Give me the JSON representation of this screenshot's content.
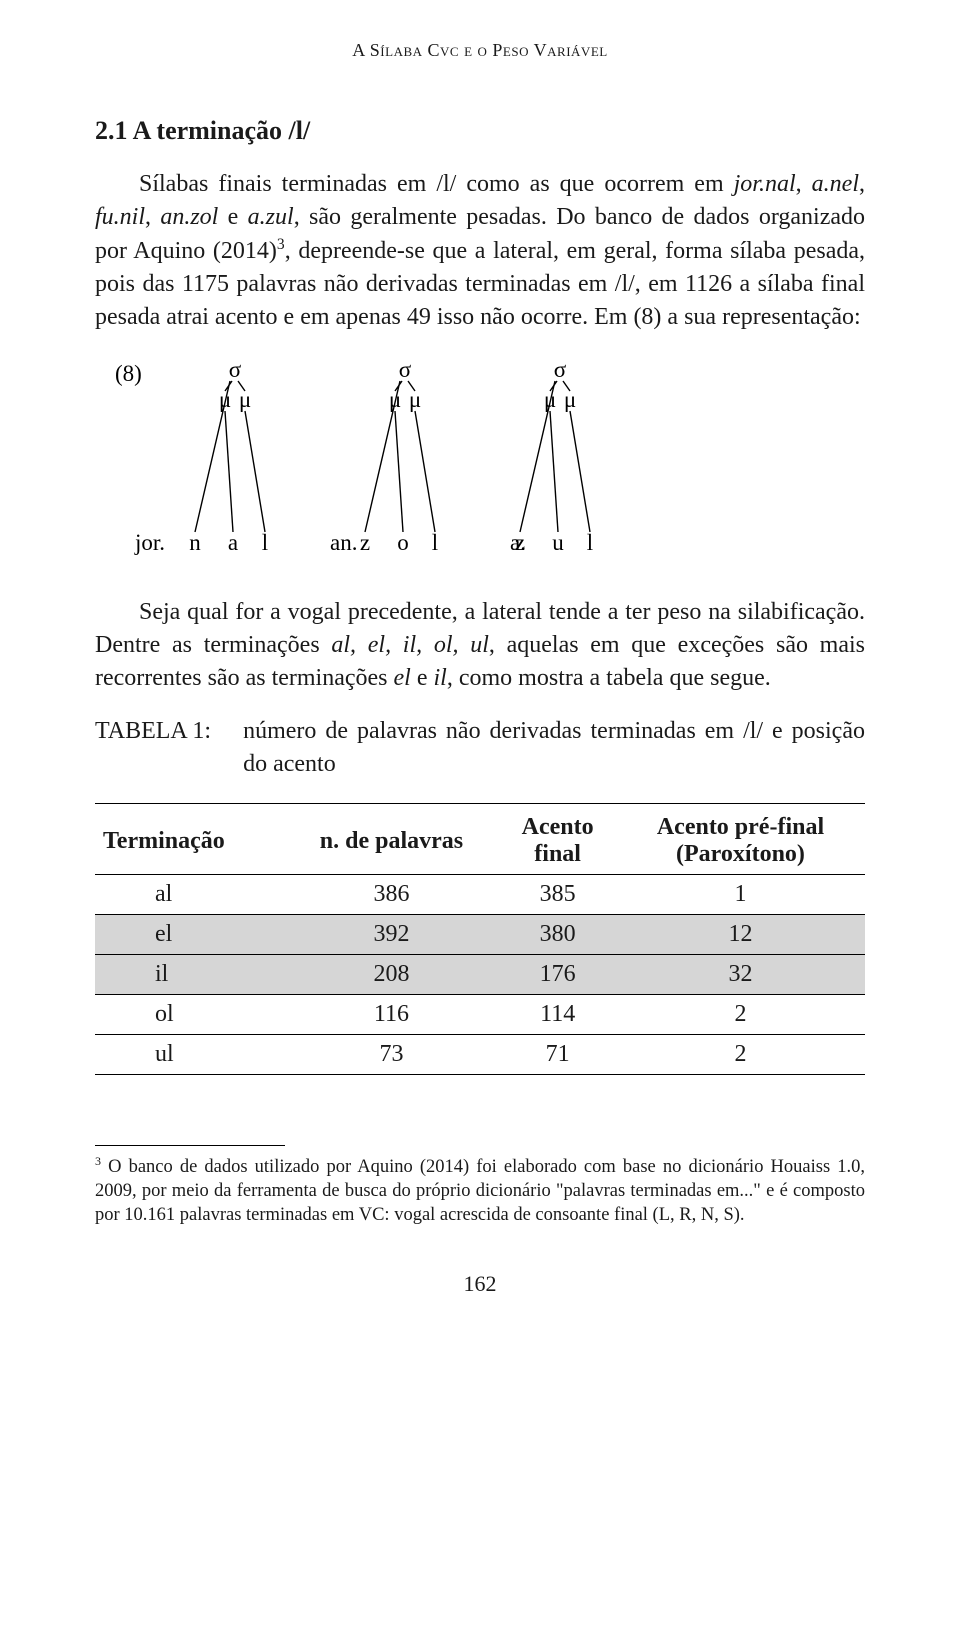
{
  "running_head": "A Sílaba Cvc e o Peso Variável",
  "heading": "2.1 A terminação /l/",
  "p1_a": "Sílabas finais terminadas em /l/ como as que ocorrem em ",
  "p1_it1": "jor.nal",
  "p1_b": ", ",
  "p1_it2": "a.nel",
  "p1_c": ", ",
  "p1_it3": "fu.nil",
  "p1_d": ", ",
  "p1_it4": "an.zol",
  "p1_e": " e ",
  "p1_it5": "a.zul",
  "p1_f": ", são geralmente pesadas. Do banco de dados organizado por Aquino (2014)",
  "p1_sup": "3",
  "p1_g": ", depreende-se  que a lateral, em geral, forma sílaba pesada, pois das 1175 palavras não derivadas terminadas em /l/, em 1126 a sílaba final pesada atrai acento e em apenas 49 isso não ocorre. Em (8) a sua representação:",
  "diagram": {
    "label": "(8)",
    "sigma": "σ",
    "mu": "μ",
    "trees": [
      {
        "prefix": "jor.",
        "segs": [
          "n",
          "a",
          "l"
        ]
      },
      {
        "prefix": "an.",
        "segs": [
          "z",
          "o",
          "l"
        ]
      },
      {
        "prefix": "a.",
        "segs": [
          "z",
          "u",
          "l"
        ]
      }
    ],
    "stroke": "#000000",
    "fontsize_seg": 23,
    "fontsize_greek": 23
  },
  "p2_a": "Seja qual for a vogal precedente, a lateral tende a ter peso na silabificação. Dentre as terminações ",
  "p2_it1": "al, el, il, ol, ul",
  "p2_b": ", aquelas em que exceções são mais recorrentes são as terminações ",
  "p2_it2": "el",
  "p2_c": " e ",
  "p2_it3": "il",
  "p2_d": ", como mostra a tabela que segue.",
  "tablecap_label": "TABELA 1:",
  "tablecap_text": "número de palavras não derivadas terminadas em /l/ e posição do acento",
  "table": {
    "columns": [
      "Terminação",
      "n. de palavras",
      "Acento final",
      "Acento pré-final (Paroxítono)"
    ],
    "col3_line1": "Acento",
    "col3_line2": "final",
    "col4_line1": "Acento pré-final",
    "col4_line2": "(Paroxítono)",
    "rows": [
      {
        "term": "al",
        "n": "386",
        "af": "385",
        "apf": "1",
        "shade": false
      },
      {
        "term": "el",
        "n": "392",
        "af": "380",
        "apf": "12",
        "shade": true
      },
      {
        "term": "il",
        "n": "208",
        "af": "176",
        "apf": "32",
        "shade": true
      },
      {
        "term": "ol",
        "n": "116",
        "af": "114",
        "apf": "2",
        "shade": false
      },
      {
        "term": "ul",
        "n": "73",
        "af": "71",
        "apf": "2",
        "shade": false
      }
    ],
    "shade_color": "#d6d6d6",
    "rule_color": "#000000"
  },
  "footnote_sup": "3",
  "footnote_text": " O banco de dados utilizado por Aquino (2014) foi elaborado com base no dicionário Houaiss 1.0, 2009, por meio da ferramenta de busca do próprio dicionário \"palavras terminadas em...\" e é composto por 10.161 palavras terminadas em VC: vogal acrescida de consoante final (L, R, N, S).",
  "pagenum": "162"
}
